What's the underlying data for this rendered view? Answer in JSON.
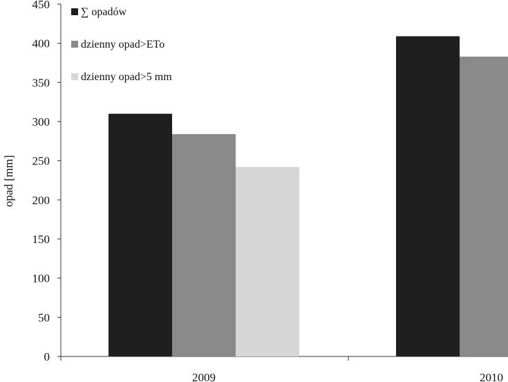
{
  "chart_data": {
    "type": "bar",
    "categories": [
      "2009",
      "2010"
    ],
    "series": [
      {
        "name": "∑ opadów",
        "color": "#1f1f1f",
        "values": [
          310,
          409
        ]
      },
      {
        "name": "dzienny opad>ETo",
        "color": "#8a8a8a",
        "values": [
          284,
          383
        ]
      },
      {
        "name": "dzienny opad>5 mm",
        "color": "#d6d6d6",
        "values": [
          242,
          null
        ]
      }
    ],
    "ylabel": "opad [mm]",
    "ylim": [
      0,
      450
    ],
    "yticks": [
      "0",
      "50",
      "100",
      "150",
      "200",
      "250",
      "300",
      "350",
      "400",
      "450"
    ],
    "grid": false,
    "legend": "top-left"
  }
}
